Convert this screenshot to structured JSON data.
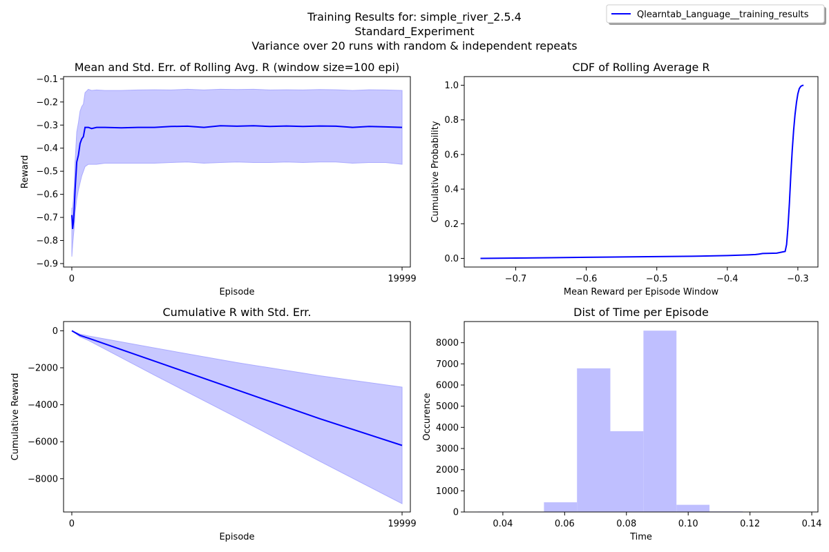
{
  "figure": {
    "title_lines": [
      "Training Results for: simple_river_2.5.4",
      "Standard_Experiment",
      "Variance over 20 runs with random & independent repeats"
    ],
    "legend": {
      "label": "Qlearntab_Language__training_results",
      "color": "#0000ff",
      "position": "top-right"
    }
  },
  "colors": {
    "line": "#0000ff",
    "fill": "#c8c8ff",
    "fill_edge": "#aaaaff",
    "hist": "#bfbfff"
  },
  "chart_data": [
    {
      "id": "rolling",
      "type": "line",
      "title": "Mean and Std. Err. of Rolling Avg. R (window size=100 epi)",
      "xlabel": "Episode",
      "ylabel": "Reward",
      "xlim": [
        -500,
        20500
      ],
      "ylim": [
        -0.915,
        -0.09
      ],
      "xticks": [
        0,
        19999
      ],
      "xtick_labels": [
        "0",
        "19999"
      ],
      "yticks": [
        -0.9,
        -0.8,
        -0.7,
        -0.6,
        -0.5,
        -0.4,
        -0.3,
        -0.2,
        -0.1
      ],
      "ytick_labels": [
        "−0.9",
        "−0.8",
        "−0.7",
        "−0.6",
        "−0.5",
        "−0.4",
        "−0.3",
        "−0.2",
        "−0.1"
      ],
      "series": [
        {
          "x": [
            0,
            50,
            100,
            150,
            200,
            300,
            400,
            500,
            600,
            700,
            800,
            1000,
            1200,
            1500,
            2000,
            3000,
            4000,
            5000,
            6000,
            7000,
            8000,
            9000,
            10000,
            11000,
            12000,
            13000,
            14000,
            15000,
            16000,
            17000,
            18000,
            19000,
            19999
          ],
          "mean": [
            -0.69,
            -0.75,
            -0.72,
            -0.66,
            -0.58,
            -0.46,
            -0.43,
            -0.38,
            -0.36,
            -0.35,
            -0.31,
            -0.31,
            -0.315,
            -0.31,
            -0.31,
            -0.312,
            -0.31,
            -0.31,
            -0.306,
            -0.305,
            -0.31,
            -0.303,
            -0.305,
            -0.303,
            -0.306,
            -0.304,
            -0.306,
            -0.304,
            -0.305,
            -0.31,
            -0.306,
            -0.308,
            -0.31
          ],
          "lower": [
            -0.87,
            -0.82,
            -0.78,
            -0.74,
            -0.68,
            -0.62,
            -0.58,
            -0.55,
            -0.52,
            -0.5,
            -0.48,
            -0.47,
            -0.47,
            -0.47,
            -0.465,
            -0.465,
            -0.465,
            -0.465,
            -0.462,
            -0.46,
            -0.465,
            -0.462,
            -0.46,
            -0.462,
            -0.462,
            -0.46,
            -0.462,
            -0.46,
            -0.46,
            -0.465,
            -0.462,
            -0.462,
            -0.47
          ],
          "upper": [
            -0.66,
            -0.66,
            -0.62,
            -0.56,
            -0.46,
            -0.33,
            -0.29,
            -0.24,
            -0.22,
            -0.21,
            -0.16,
            -0.145,
            -0.15,
            -0.148,
            -0.15,
            -0.15,
            -0.148,
            -0.147,
            -0.148,
            -0.145,
            -0.148,
            -0.145,
            -0.146,
            -0.145,
            -0.148,
            -0.147,
            -0.148,
            -0.146,
            -0.147,
            -0.15,
            -0.147,
            -0.148,
            -0.15
          ]
        }
      ]
    },
    {
      "id": "cdf",
      "type": "line",
      "title": "CDF of Rolling Average R",
      "xlabel": "Mean Reward per Episode Window",
      "ylabel": "Cumulative Probability",
      "xlim": [
        -0.773,
        -0.2715
      ],
      "ylim": [
        -0.05,
        1.05
      ],
      "xticks": [
        -0.7,
        -0.6,
        -0.5,
        -0.4,
        -0.3
      ],
      "xtick_labels": [
        "−0.7",
        "−0.6",
        "−0.5",
        "−0.4",
        "−0.3"
      ],
      "yticks": [
        0.0,
        0.2,
        0.4,
        0.6,
        0.8,
        1.0
      ],
      "ytick_labels": [
        "0.0",
        "0.2",
        "0.4",
        "0.6",
        "0.8",
        "1.0"
      ],
      "series": [
        {
          "x": [
            -0.75,
            -0.7,
            -0.65,
            -0.6,
            -0.5,
            -0.45,
            -0.4,
            -0.37,
            -0.36,
            -0.355,
            -0.35,
            -0.33,
            -0.318,
            -0.316,
            -0.314,
            -0.312,
            -0.31,
            -0.308,
            -0.306,
            -0.304,
            -0.302,
            -0.3,
            -0.298,
            -0.296,
            -0.294,
            -0.292
          ],
          "y": [
            0.0,
            0.002,
            0.004,
            0.006,
            0.01,
            0.012,
            0.016,
            0.02,
            0.022,
            0.025,
            0.028,
            0.03,
            0.04,
            0.08,
            0.18,
            0.32,
            0.48,
            0.62,
            0.74,
            0.83,
            0.9,
            0.95,
            0.98,
            0.993,
            0.998,
            1.0
          ]
        }
      ]
    },
    {
      "id": "cumulative",
      "type": "area",
      "title": "Cumulative R with Std. Err.",
      "xlabel": "Episode",
      "ylabel": "Cumulative Reward",
      "xlim": [
        -500,
        20500
      ],
      "ylim": [
        -9800,
        500
      ],
      "xticks": [
        0,
        19999
      ],
      "xtick_labels": [
        "0",
        "19999"
      ],
      "yticks": [
        -8000,
        -6000,
        -4000,
        -2000,
        0
      ],
      "ytick_labels": [
        "−8000",
        "−6000",
        "−4000",
        "−2000",
        "0"
      ],
      "series": [
        {
          "x": [
            0,
            500,
            1000,
            5000,
            10000,
            15000,
            19999
          ],
          "mean": [
            0,
            -250,
            -400,
            -1640,
            -3200,
            -4750,
            -6200
          ],
          "lower": [
            0,
            -330,
            -520,
            -2400,
            -4700,
            -7050,
            -9350
          ],
          "upper": [
            0,
            -180,
            -280,
            -930,
            -1720,
            -2430,
            -3050
          ]
        }
      ]
    },
    {
      "id": "time_hist",
      "type": "bar",
      "title": "Dist of Time per Episode",
      "xlabel": "Time",
      "ylabel": "Occurence",
      "xlim": [
        0.0275,
        0.142
      ],
      "ylim": [
        0,
        9000
      ],
      "xticks": [
        0.04,
        0.06,
        0.08,
        0.1,
        0.12,
        0.14
      ],
      "xtick_labels": [
        "0.04",
        "0.06",
        "0.08",
        "0.10",
        "0.12",
        "0.14"
      ],
      "yticks": [
        0,
        1000,
        2000,
        3000,
        4000,
        5000,
        6000,
        7000,
        8000
      ],
      "ytick_labels": [
        "0",
        "1000",
        "2000",
        "3000",
        "4000",
        "5000",
        "6000",
        "7000",
        "8000"
      ],
      "bin_edges": [
        0.0319,
        0.0426,
        0.0533,
        0.064,
        0.0748,
        0.0855,
        0.0962,
        0.1069,
        0.1177,
        0.1284,
        0.1391
      ],
      "counts": [
        20,
        20,
        460,
        6790,
        3820,
        8570,
        340,
        25,
        5,
        5
      ]
    }
  ]
}
